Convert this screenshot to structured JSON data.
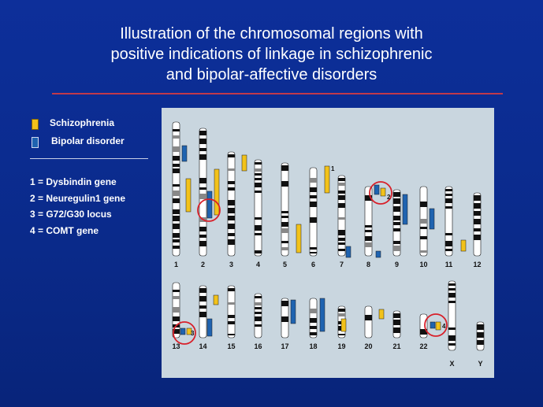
{
  "title": {
    "line1": "Illustration of the chromosomal regions with",
    "line2": "positive indications of linkage in schizophrenic",
    "line3": "and bipolar-affective disorders"
  },
  "legend": {
    "schizophrenia": "Schizophrenia",
    "bipolar": "Bipolar disorder"
  },
  "genes": [
    "1 = Dysbindin gene",
    "2 = Neuregulin1 gene",
    "3 = G72/G30 locus",
    "4 = COMT gene"
  ],
  "colors": {
    "schizophrenia": "#f2c21a",
    "bipolar": "#1f63b0",
    "highlight": "#d8202a"
  },
  "chromosomes_row1": [
    "1",
    "2",
    "3",
    "4",
    "5",
    "6",
    "7",
    "8",
    "9",
    "10",
    "11",
    "12"
  ],
  "chromosomes_row2": [
    "13",
    "14",
    "15",
    "16",
    "17",
    "18",
    "19",
    "20",
    "21",
    "22",
    "X",
    "Y"
  ],
  "markers": [
    "1",
    "2",
    "3",
    "4"
  ]
}
